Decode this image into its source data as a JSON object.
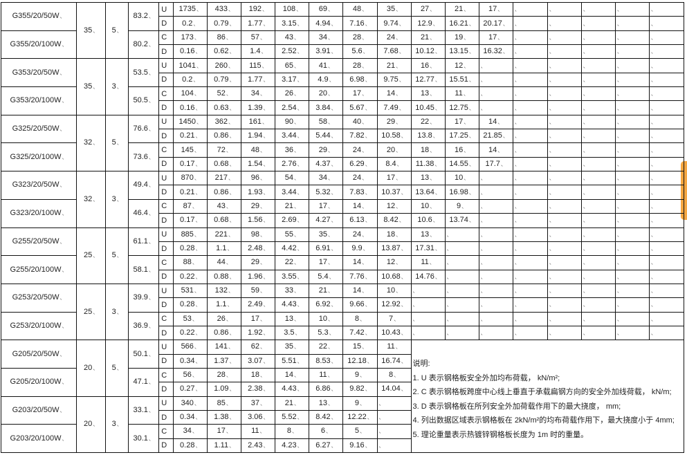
{
  "blocks": [
    {
      "span": "35",
      "thickness": "5",
      "products": [
        {
          "name": "G355/20/50W",
          "weight": "83.2",
          "rows": [
            {
              "type": "U",
              "values": [
                "1735",
                "433",
                "192",
                "108",
                "69",
                "48",
                "35",
                "27",
                "21",
                "17"
              ]
            },
            {
              "type": "D",
              "values": [
                "0.2",
                "0.79",
                "1.77",
                "3.15",
                "4.94",
                "7.16",
                "9.74",
                "12.9",
                "16.21",
                "20.17"
              ]
            }
          ]
        },
        {
          "name": "G355/20/100W",
          "weight": "80.2",
          "rows": [
            {
              "type": "C",
              "values": [
                "173",
                "86",
                "57",
                "43",
                "34",
                "28",
                "24",
                "21",
                "19",
                "17"
              ]
            },
            {
              "type": "D",
              "values": [
                "0.16",
                "0.62",
                "1.4",
                "2.52",
                "3.91",
                "5.6",
                "7.68",
                "10.12",
                "13.15",
                "16.32"
              ]
            }
          ]
        }
      ]
    },
    {
      "span": "35",
      "thickness": "3",
      "products": [
        {
          "name": "G353/20/50W",
          "weight": "53.5",
          "rows": [
            {
              "type": "U",
              "values": [
                "1041",
                "260",
                "115",
                "65",
                "41",
                "28",
                "21",
                "16",
                "12"
              ]
            },
            {
              "type": "D",
              "values": [
                "0.2",
                "0.79",
                "1.77",
                "3.17",
                "4.9",
                "6.98",
                "9.75",
                "12.77",
                "15.51"
              ]
            }
          ]
        },
        {
          "name": "G353/20/100W",
          "weight": "50.5",
          "rows": [
            {
              "type": "C",
              "values": [
                "104",
                "52",
                "34",
                "26",
                "20",
                "17",
                "14",
                "13",
                "11"
              ]
            },
            {
              "type": "D",
              "values": [
                "0.16",
                "0.63",
                "1.39",
                "2.54",
                "3.84",
                "5.67",
                "7.49",
                "10.45",
                "12.75"
              ]
            }
          ]
        }
      ]
    },
    {
      "span": "32",
      "thickness": "5",
      "products": [
        {
          "name": "G325/20/50W",
          "weight": "76.6",
          "rows": [
            {
              "type": "U",
              "values": [
                "1450",
                "362",
                "161",
                "90",
                "58",
                "40",
                "29",
                "22",
                "17",
                "14"
              ]
            },
            {
              "type": "D",
              "values": [
                "0.21",
                "0.86",
                "1.94",
                "3.44",
                "5.44",
                "7.82",
                "10.58",
                "13.8",
                "17.25",
                "21.85"
              ]
            }
          ]
        },
        {
          "name": "G325/20/100W",
          "weight": "73.6",
          "rows": [
            {
              "type": "C",
              "values": [
                "145",
                "72",
                "48",
                "36",
                "29",
                "24",
                "20",
                "18",
                "16",
                "14"
              ]
            },
            {
              "type": "D",
              "values": [
                "0.17",
                "0.68",
                "1.54",
                "2.76",
                "4.37",
                "6.29",
                "8.4",
                "11.38",
                "14.55",
                "17.7"
              ]
            }
          ]
        }
      ]
    },
    {
      "span": "32",
      "thickness": "3",
      "products": [
        {
          "name": "G323/20/50W",
          "weight": "49.4",
          "rows": [
            {
              "type": "U",
              "values": [
                "870",
                "217",
                "96",
                "54",
                "34",
                "24",
                "17",
                "13",
                "10"
              ]
            },
            {
              "type": "D",
              "values": [
                "0.21",
                "0.86",
                "1.93",
                "3.44",
                "5.32",
                "7.83",
                "10.37",
                "13.64",
                "16.98"
              ]
            }
          ]
        },
        {
          "name": "G323/20/100W",
          "weight": "46.4",
          "rows": [
            {
              "type": "C",
              "values": [
                "87",
                "43",
                "29",
                "21",
                "17",
                "14",
                "12",
                "10",
                "9"
              ]
            },
            {
              "type": "D",
              "values": [
                "0.17",
                "0.68",
                "1.56",
                "2.69",
                "4.27",
                "6.13",
                "8.42",
                "10.6",
                "13.74"
              ]
            }
          ]
        }
      ]
    },
    {
      "span": "25",
      "thickness": "5",
      "products": [
        {
          "name": "G255/20/50W",
          "weight": "61.1",
          "rows": [
            {
              "type": "U",
              "values": [
                "885",
                "221",
                "98",
                "55",
                "35",
                "24",
                "18",
                "13"
              ]
            },
            {
              "type": "D",
              "values": [
                "0.28",
                "1.1",
                "2.48",
                "4.42",
                "6.91",
                "9.9",
                "13.87",
                "17.31"
              ]
            }
          ]
        },
        {
          "name": "G255/20/100W",
          "weight": "58.1",
          "rows": [
            {
              "type": "C",
              "values": [
                "88",
                "44",
                "29",
                "22",
                "17",
                "14",
                "12",
                "11"
              ]
            },
            {
              "type": "D",
              "values": [
                "0.22",
                "0.88",
                "1.96",
                "3.55",
                "5.4",
                "7.76",
                "10.68",
                "14.76"
              ]
            }
          ]
        }
      ]
    },
    {
      "span": "25",
      "thickness": "3",
      "products": [
        {
          "name": "G253/20/50W",
          "weight": "39.9",
          "rows": [
            {
              "type": "U",
              "values": [
                "531",
                "132",
                "59",
                "33",
                "21",
                "14",
                "10"
              ]
            },
            {
              "type": "D",
              "values": [
                "0.28",
                "1.1",
                "2.49",
                "4.43",
                "6.92",
                "9.66",
                "12.92"
              ]
            }
          ]
        },
        {
          "name": "G253/20/100W",
          "weight": "36.9",
          "rows": [
            {
              "type": "C",
              "values": [
                "53",
                "26",
                "17",
                "13",
                "10",
                "8",
                "7"
              ]
            },
            {
              "type": "D",
              "values": [
                "0.22",
                "0.86",
                "1.92",
                "3.5",
                "5.3",
                "7.42",
                "10.43"
              ]
            }
          ]
        }
      ]
    },
    {
      "span": "20",
      "thickness": "5",
      "products": [
        {
          "name": "G205/20/50W",
          "weight": "50.1",
          "rows": [
            {
              "type": "U",
              "values": [
                "566",
                "141",
                "62",
                "35",
                "22",
                "15",
                "11"
              ]
            },
            {
              "type": "D",
              "values": [
                "0.34",
                "1.37",
                "3.07",
                "5.51",
                "8.53",
                "12.18",
                "16.74"
              ]
            }
          ]
        },
        {
          "name": "G205/20/100W",
          "weight": "47.1",
          "rows": [
            {
              "type": "C",
              "values": [
                "56",
                "28",
                "18",
                "14",
                "11",
                "9",
                "8"
              ]
            },
            {
              "type": "D",
              "values": [
                "0.27",
                "1.09",
                "2.38",
                "4.43",
                "6.86",
                "9.82",
                "14.04"
              ]
            }
          ]
        }
      ]
    },
    {
      "span": "20",
      "thickness": "3",
      "products": [
        {
          "name": "G203/20/50W",
          "weight": "33.1",
          "rows": [
            {
              "type": "U",
              "values": [
                "340",
                "85",
                "37",
                "21",
                "13",
                "9"
              ]
            },
            {
              "type": "D",
              "values": [
                "0.34",
                "1.38",
                "3.06",
                "5.52",
                "8.42",
                "12.22"
              ]
            }
          ]
        },
        {
          "name": "G203/20/100W",
          "weight": "30.1",
          "rows": [
            {
              "type": "C",
              "values": [
                "34",
                "17",
                "11",
                "8",
                "6",
                "5"
              ]
            },
            {
              "type": "D",
              "values": [
                "0.28",
                "1.11",
                "2.43",
                "4.23",
                "6.27",
                "9.16"
              ]
            }
          ]
        }
      ]
    }
  ],
  "notes": {
    "title": "说明:",
    "lines": [
      "1. U 表示钢格板安全外加均布荷载， kN/m²;",
      "2. C 表示钢格板跨度中心线上垂直于承载扁钢方向的安全外加线荷载， kN/m;",
      "3. D 表示钢格板在所列安全外加荷载作用下的最大挠度， mm;",
      "4. 列出数据区域表示钢格板在 2kN/m²的均布荷载作用下，最大挠度小于 4mm;",
      "5. 理论重量表示热镀锌钢格板长度为 1m 时的重量。"
    ]
  },
  "colors": {
    "border": "#111111",
    "side_tab": "#f5a742"
  }
}
